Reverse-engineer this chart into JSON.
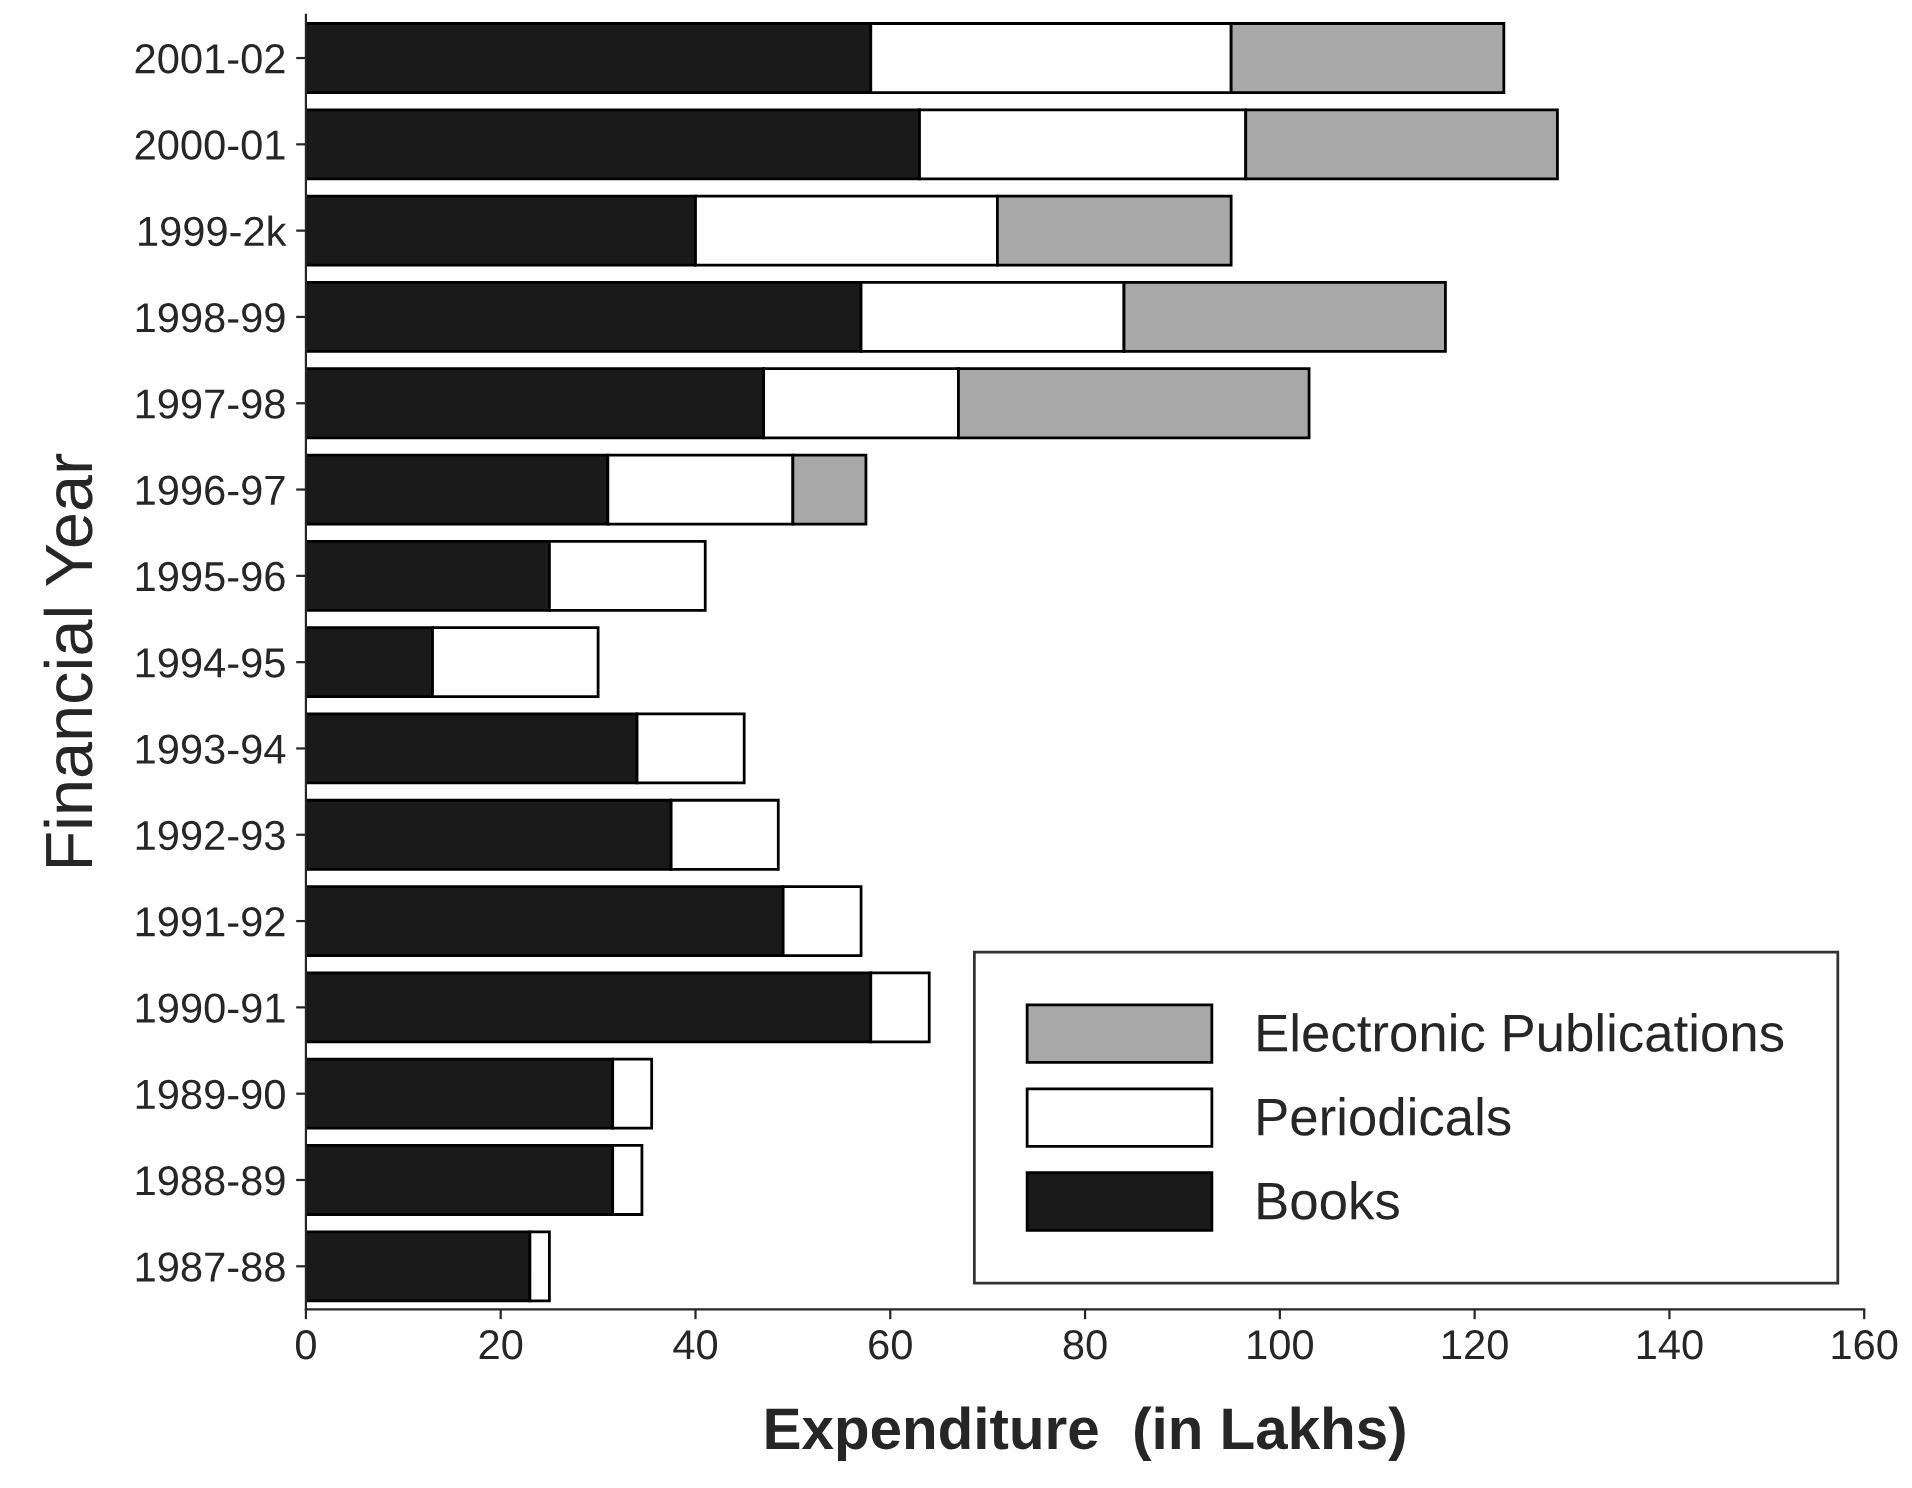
{
  "chart_data": {
    "type": "bar",
    "orientation": "horizontal",
    "stacked": true,
    "xlabel": "Expenditure  (in Lakhs)",
    "ylabel": "Financial Year",
    "categories": [
      "2001-02",
      "2000-01",
      "1999-2k",
      "1998-99",
      "1997-98",
      "1996-97",
      "1995-96",
      "1994-95",
      "1993-94",
      "1992-93",
      "1991-92",
      "1990-91",
      "1989-90",
      "1988-89",
      "1987-88"
    ],
    "series": [
      {
        "name": "Books",
        "color": "#1a1a1a",
        "values": [
          58,
          63,
          40,
          57,
          47,
          31,
          25,
          13,
          34,
          37.5,
          49,
          58,
          31.5,
          31.5,
          23
        ]
      },
      {
        "name": "Periodicals",
        "color": "#ffffff",
        "values": [
          37,
          33.5,
          31,
          27,
          20,
          19,
          16,
          17,
          11,
          11,
          8,
          6,
          4,
          3,
          2
        ]
      },
      {
        "name": "Electronic Publications",
        "color": "#a8a8a8",
        "values": [
          28,
          32,
          24,
          33,
          36,
          7.5,
          null,
          null,
          null,
          null,
          null,
          null,
          null,
          null,
          null
        ]
      }
    ],
    "xlim": [
      0,
      160
    ],
    "xticks": [
      0,
      20,
      40,
      60,
      80,
      100,
      120,
      140,
      160
    ],
    "grid": false,
    "legend": "bottom right"
  }
}
